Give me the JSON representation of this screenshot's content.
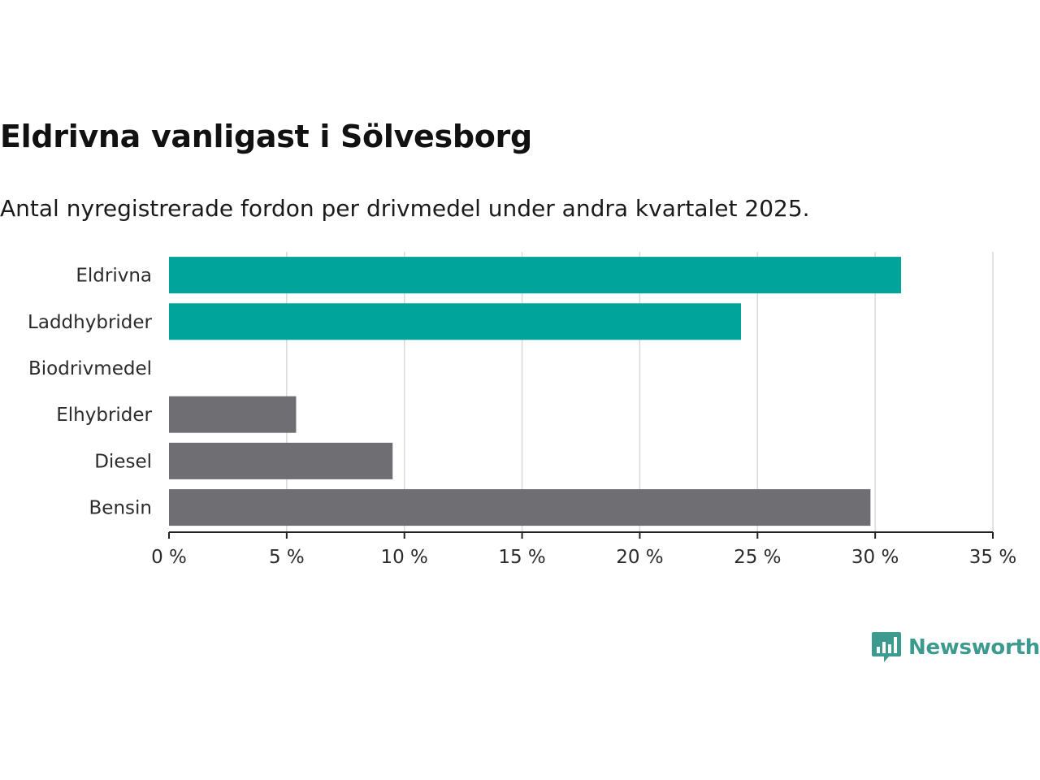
{
  "title": "Eldrivna vanligast i Sölvesborg",
  "subtitle": "Antal nyregistrerade fordon per drivmedel under andra kvartalet 2025.",
  "brand": {
    "name": "Newsworthy",
    "color": "#3d9a8e",
    "icon": "bar-chart-speech-bubble-icon"
  },
  "colors": {
    "highlight": "#00a49a",
    "other": "#6f6e73",
    "grid": "#d9d9d9",
    "axis": "#222222"
  },
  "chart_data": {
    "type": "bar",
    "orientation": "horizontal",
    "categories": [
      "Eldrivna",
      "Laddhybrider",
      "Biodrivmedel",
      "Elhybrider",
      "Diesel",
      "Bensin"
    ],
    "values": [
      31.1,
      24.3,
      0,
      5.4,
      9.5,
      29.8
    ],
    "highlighted": [
      true,
      true,
      true,
      false,
      false,
      false
    ],
    "xlim": [
      0,
      35
    ],
    "xticks": [
      0,
      5,
      10,
      15,
      20,
      25,
      30,
      35
    ],
    "tick_labels": [
      "0 %",
      "5 %",
      "10 %",
      "15 %",
      "20 %",
      "25 %",
      "30 %",
      "35 %"
    ],
    "grid": true,
    "xlabel": "",
    "ylabel": ""
  }
}
